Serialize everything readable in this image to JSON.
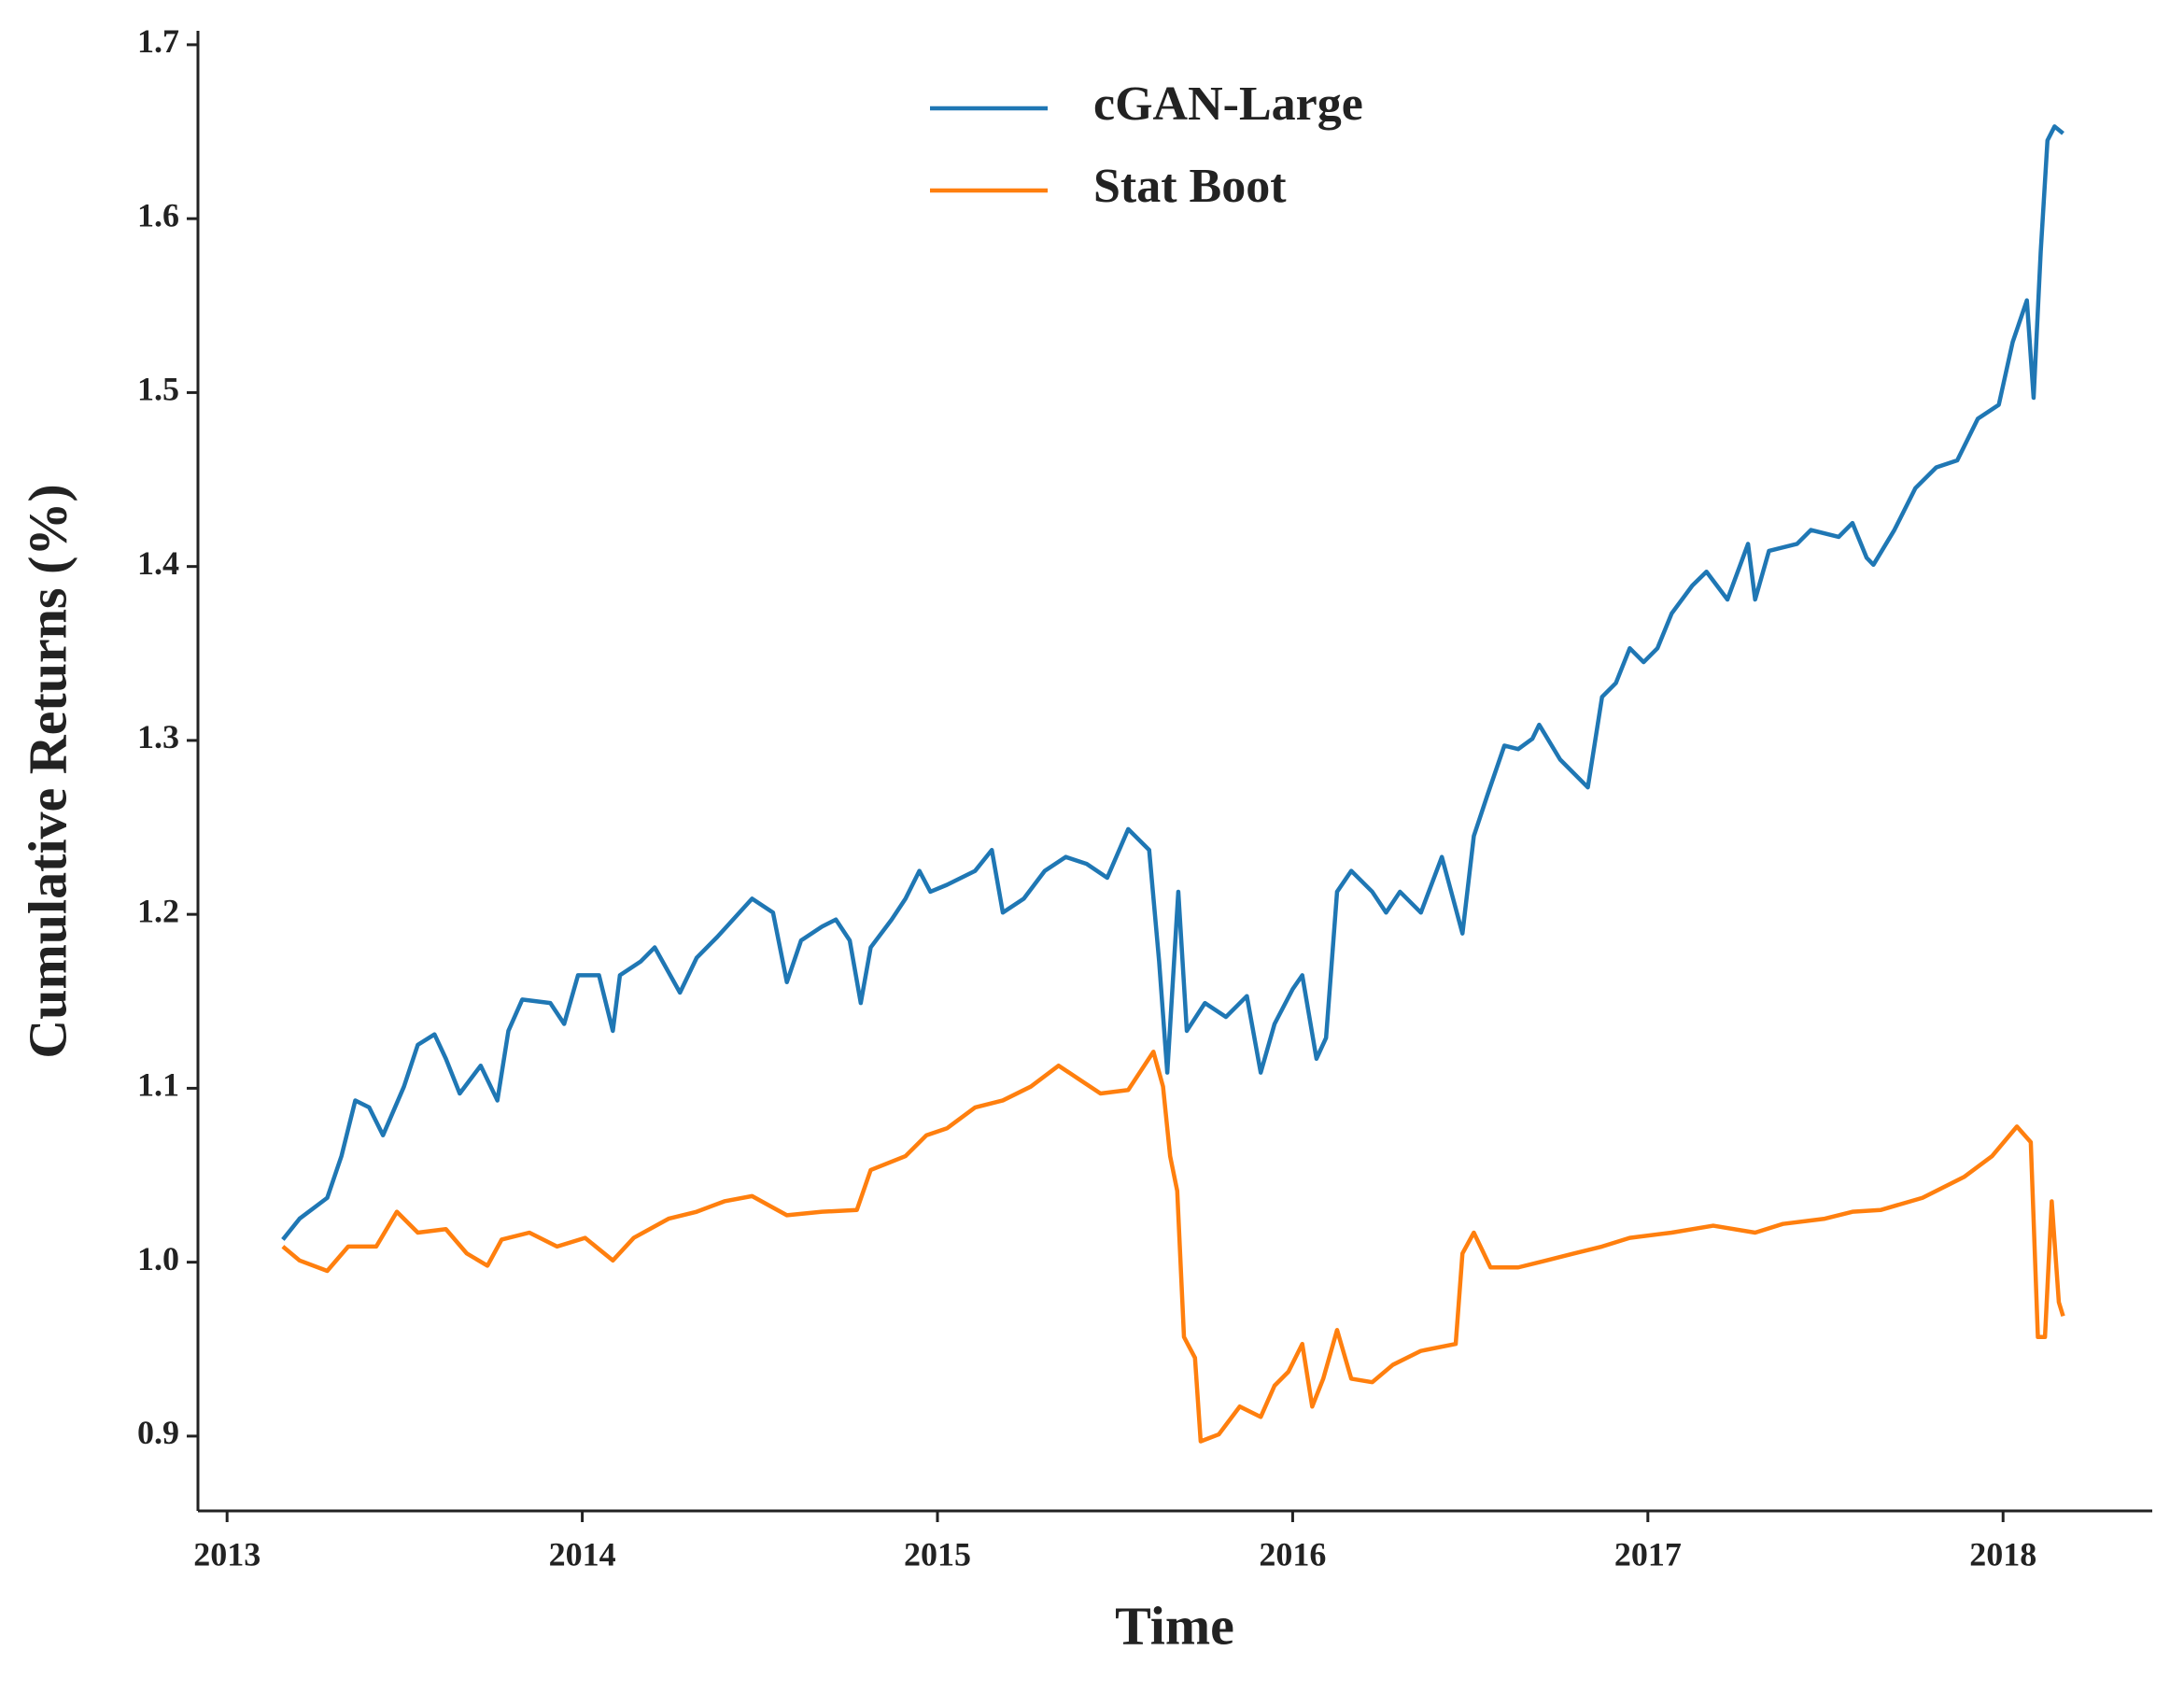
{
  "chart_data": {
    "type": "line",
    "xlabel": "Time",
    "ylabel": "Cumulative Returns (%)",
    "xlim": [
      2012.918,
      2018.42
    ],
    "xticks": [
      2013,
      2014,
      2015,
      2016,
      2017,
      2018
    ],
    "ylim": [
      0.857,
      1.708
    ],
    "yticks": [
      0.9,
      {
        "value": 1,
        "label": "1.0"
      },
      1.1,
      1.2,
      1.3,
      1.4,
      1.5,
      1.6,
      1.7
    ],
    "grid": false,
    "legend": "upper center",
    "series": [
      {
        "name": "cGAN-Large",
        "color": "#1f77b4",
        "x": [
          2013.157,
          2013.204,
          2013.282,
          2013.322,
          2013.361,
          2013.4,
          2013.439,
          2013.498,
          2013.537,
          2013.584,
          2013.616,
          2013.655,
          2013.714,
          2013.761,
          2013.792,
          2013.831,
          2013.91,
          2013.949,
          2013.988,
          2014.047,
          2014.086,
          2014.106,
          2014.165,
          2014.204,
          2014.275,
          2014.322,
          2014.38,
          2014.478,
          2014.537,
          2014.576,
          2014.616,
          2014.675,
          2014.714,
          2014.753,
          2014.784,
          2014.812,
          2014.871,
          2014.91,
          2014.949,
          2014.98,
          2015.027,
          2015.106,
          2015.153,
          2015.184,
          2015.243,
          2015.302,
          2015.361,
          2015.42,
          2015.478,
          2015.537,
          2015.596,
          2015.624,
          2015.647,
          2015.678,
          2015.702,
          2015.753,
          2015.812,
          2015.871,
          2015.91,
          2015.949,
          2016.0,
          2016.027,
          2016.067,
          2016.094,
          2016.125,
          2016.165,
          2016.224,
          2016.263,
          2016.302,
          2016.361,
          2016.42,
          2016.478,
          2016.51,
          2016.549,
          2016.596,
          2016.635,
          2016.675,
          2016.694,
          2016.753,
          2016.831,
          2016.871,
          2016.91,
          2016.949,
          2016.988,
          2017.027,
          2017.067,
          2017.125,
          2017.165,
          2017.224,
          2017.282,
          2017.302,
          2017.341,
          2017.42,
          2017.459,
          2017.537,
          2017.576,
          2017.616,
          2017.635,
          2017.694,
          2017.753,
          2017.812,
          2017.871,
          2017.929,
          2017.988,
          2018.027,
          2018.067,
          2018.086,
          2018.106,
          2018.125,
          2018.145,
          2018.169
        ],
        "values": [
          1.013,
          1.025,
          1.037,
          1.061,
          1.093,
          1.089,
          1.073,
          1.101,
          1.125,
          1.131,
          1.117,
          1.097,
          1.113,
          1.093,
          1.133,
          1.151,
          1.149,
          1.137,
          1.165,
          1.165,
          1.133,
          1.165,
          1.173,
          1.181,
          1.155,
          1.175,
          1.187,
          1.209,
          1.201,
          1.161,
          1.185,
          1.193,
          1.197,
          1.185,
          1.149,
          1.181,
          1.197,
          1.209,
          1.225,
          1.213,
          1.217,
          1.225,
          1.237,
          1.201,
          1.209,
          1.225,
          1.233,
          1.229,
          1.221,
          1.249,
          1.237,
          1.173,
          1.109,
          1.213,
          1.133,
          1.149,
          1.141,
          1.153,
          1.109,
          1.137,
          1.157,
          1.165,
          1.117,
          1.129,
          1.213,
          1.225,
          1.213,
          1.201,
          1.213,
          1.201,
          1.233,
          1.189,
          1.245,
          1.269,
          1.297,
          1.295,
          1.301,
          1.309,
          1.289,
          1.273,
          1.325,
          1.333,
          1.353,
          1.345,
          1.353,
          1.373,
          1.389,
          1.397,
          1.381,
          1.413,
          1.381,
          1.409,
          1.413,
          1.421,
          1.417,
          1.425,
          1.405,
          1.401,
          1.421,
          1.445,
          1.457,
          1.461,
          1.485,
          1.493,
          1.529,
          1.553,
          1.497,
          1.581,
          1.645,
          1.653,
          1.649
        ]
      },
      {
        "name": "Stat Boot",
        "color": "#ff7f0e",
        "x": [
          2013.157,
          2013.204,
          2013.282,
          2013.341,
          2013.42,
          2013.478,
          2013.537,
          2013.616,
          2013.675,
          2013.733,
          2013.773,
          2013.851,
          2013.929,
          2014.008,
          2014.086,
          2014.145,
          2014.243,
          2014.322,
          2014.4,
          2014.478,
          2014.576,
          2014.675,
          2014.773,
          2014.812,
          2014.91,
          2014.969,
          2015.027,
          2015.106,
          2015.184,
          2015.263,
          2015.341,
          2015.4,
          2015.459,
          2015.537,
          2015.608,
          2015.635,
          2015.655,
          2015.675,
          2015.694,
          2015.725,
          2015.741,
          2015.792,
          2015.851,
          2015.91,
          2015.949,
          2015.988,
          2016.027,
          2016.055,
          2016.086,
          2016.125,
          2016.165,
          2016.224,
          2016.282,
          2016.361,
          2016.459,
          2016.478,
          2016.51,
          2016.557,
          2016.635,
          2016.714,
          2016.792,
          2016.871,
          2016.949,
          2017.067,
          2017.184,
          2017.302,
          2017.38,
          2017.498,
          2017.576,
          2017.655,
          2017.773,
          2017.89,
          2017.969,
          2018.039,
          2018.078,
          2018.098,
          2018.118,
          2018.137,
          2018.157,
          2018.169
        ],
        "values": [
          1.009,
          1.001,
          0.995,
          1.009,
          1.009,
          1.029,
          1.017,
          1.019,
          1.005,
          0.998,
          1.013,
          1.017,
          1.009,
          1.014,
          1.001,
          1.014,
          1.025,
          1.029,
          1.035,
          1.038,
          1.027,
          1.029,
          1.03,
          1.053,
          1.061,
          1.073,
          1.077,
          1.089,
          1.093,
          1.101,
          1.113,
          1.105,
          1.097,
          1.099,
          1.121,
          1.101,
          1.061,
          1.041,
          0.957,
          0.945,
          0.897,
          0.901,
          0.917,
          0.911,
          0.929,
          0.937,
          0.953,
          0.917,
          0.933,
          0.961,
          0.933,
          0.931,
          0.941,
          0.949,
          0.953,
          1.005,
          1.017,
          0.997,
          0.997,
          1.001,
          1.005,
          1.009,
          1.014,
          1.017,
          1.021,
          1.017,
          1.022,
          1.025,
          1.029,
          1.03,
          1.037,
          1.049,
          1.061,
          1.078,
          1.069,
          0.957,
          0.957,
          1.035,
          0.977,
          0.969
        ]
      }
    ]
  }
}
